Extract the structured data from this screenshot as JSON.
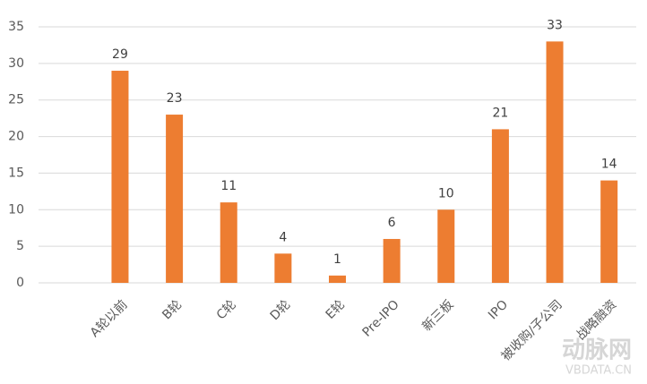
{
  "chart_data": {
    "type": "bar",
    "categories": [
      null,
      "A轮以前",
      "B轮",
      "C轮",
      "D轮",
      "E轮",
      "Pre-IPO",
      "新三板",
      "IPO",
      "被收购/子公司",
      "战略融资"
    ],
    "values": [
      null,
      29,
      23,
      11,
      4,
      1,
      6,
      10,
      21,
      33,
      14
    ],
    "color": "#ed7d31",
    "ylim": [
      0,
      35
    ],
    "yticks": [
      0,
      5,
      10,
      15,
      20,
      25,
      30,
      35
    ],
    "grid": true,
    "watermark": [
      "动脉网",
      "VBDATA.CN"
    ]
  }
}
